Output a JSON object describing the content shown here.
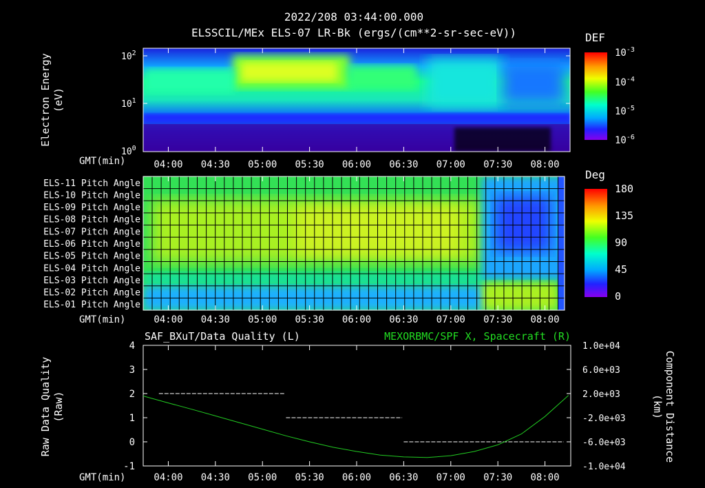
{
  "header": {
    "time": "2022/208 03:44:00.000",
    "title": "ELSSCIL/MEx ELS-07 LR-Bk  (ergs/(cm**2-sr-sec-eV))"
  },
  "colors": {
    "background": "#000000",
    "foreground": "#ffffff",
    "line_series": "#22cc22",
    "right_title": "#22dd22"
  },
  "x_axis": {
    "label": "GMT(min)",
    "ticks": [
      "04:00",
      "04:30",
      "05:00",
      "05:30",
      "06:00",
      "06:30",
      "07:00",
      "07:30",
      "08:00"
    ]
  },
  "chart_data": [
    {
      "type": "heatmap",
      "name": "electron-energy-spectrogram",
      "ylabel": "Electron Energy (eV)",
      "ylabel_lines": [
        "Electron Energy",
        "(eV)"
      ],
      "y_scale": "log",
      "y_ticks": [
        {
          "label": "10",
          "exp": "0",
          "value": 1
        },
        {
          "label": "10",
          "exp": "1",
          "value": 10
        },
        {
          "label": "10",
          "exp": "2",
          "value": 100
        }
      ],
      "ylim": [
        1,
        150
      ],
      "xlim": [
        "03:44",
        "08:16"
      ],
      "colorbar": {
        "title": "DEF",
        "scale": "log",
        "ticks": [
          {
            "label": "10",
            "exp": "-3",
            "value": 0.001
          },
          {
            "label": "10",
            "exp": "-4",
            "value": 0.0001
          },
          {
            "label": "10",
            "exp": "-5",
            "value": 1e-05
          },
          {
            "label": "10",
            "exp": "-6",
            "value": 1e-06
          }
        ]
      }
    },
    {
      "type": "heatmap",
      "name": "pitch-angle",
      "rows": [
        "ELS-11 Pitch Angle",
        "ELS-10 Pitch Angle",
        "ELS-09 Pitch Angle",
        "ELS-08 Pitch Angle",
        "ELS-07 Pitch Angle",
        "ELS-06 Pitch Angle",
        "ELS-05 Pitch Angle",
        "ELS-04 Pitch Angle",
        "ELS-03 Pitch Angle",
        "ELS-02 Pitch Angle",
        "ELS-01 Pitch Angle"
      ],
      "xlim": [
        "03:44",
        "08:16"
      ],
      "colorbar": {
        "title": "Deg",
        "ticks": [
          "180",
          "135",
          "90",
          "45",
          "0"
        ],
        "range": [
          0,
          180
        ]
      }
    },
    {
      "type": "line",
      "name": "data-quality-and-spacecraft-position",
      "left_title": "SAF_BXuT/Data Quality (L)",
      "right_title": "MEXORBMC/SPF X, Spacecraft (R)",
      "left_ylabel_lines": [
        "Raw Data Quality",
        "(Raw)"
      ],
      "right_ylabel_lines": [
        "Component Distance",
        "(km)"
      ],
      "left_ylim": [
        -1,
        4
      ],
      "left_ticks": [
        "4",
        "3",
        "2",
        "1",
        "0",
        "-1"
      ],
      "right_ylim": [
        -10000,
        10000
      ],
      "right_ticks": [
        "1.0e+04",
        "6.0e+03",
        "2.0e+03",
        "-2.0e+03",
        "-6.0e+03",
        "-1.0e+04"
      ],
      "xlim": [
        "03:44",
        "08:16"
      ],
      "series": [
        {
          "name": "Data Quality",
          "axis": "left",
          "style": "dashed",
          "segments": [
            {
              "x": [
                "03:54",
                "05:14"
              ],
              "y": 2
            },
            {
              "x": [
                "05:15",
                "06:29"
              ],
              "y": 1
            },
            {
              "x": [
                "06:30",
                "08:12"
              ],
              "y": 0
            }
          ]
        },
        {
          "name": "SPF X",
          "axis": "right",
          "style": "line",
          "x": [
            "03:44",
            "04:00",
            "04:15",
            "04:30",
            "04:45",
            "05:00",
            "05:15",
            "05:30",
            "05:45",
            "06:00",
            "06:15",
            "06:30",
            "06:45",
            "07:00",
            "07:15",
            "07:30",
            "07:45",
            "08:00",
            "08:15"
          ],
          "y": [
            1600,
            450,
            -600,
            -1700,
            -2800,
            -3900,
            -5000,
            -6000,
            -6900,
            -7600,
            -8200,
            -8500,
            -8600,
            -8300,
            -7600,
            -6500,
            -4700,
            -1800,
            1700
          ]
        }
      ]
    }
  ]
}
